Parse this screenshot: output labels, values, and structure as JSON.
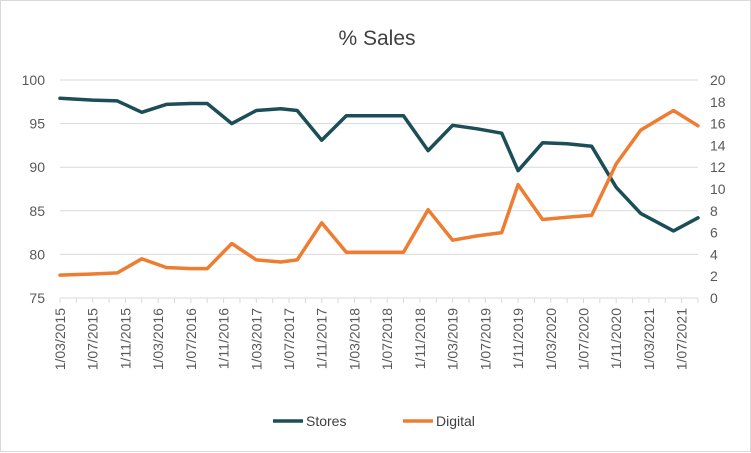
{
  "chart_data": {
    "type": "line",
    "title": "% Sales",
    "xlabel": "",
    "ylabel": "",
    "y2label": "",
    "ylim": [
      75,
      100
    ],
    "y_ticks": [
      75,
      80,
      85,
      90,
      95,
      100
    ],
    "y2lim": [
      0,
      20
    ],
    "y2_ticks": [
      0,
      2,
      4,
      6,
      8,
      10,
      12,
      14,
      16,
      18,
      20
    ],
    "grid": true,
    "legend_position": "bottom",
    "x": [
      "1/03/2015",
      "1/05/2015",
      "1/07/2015",
      "1/09/2015",
      "1/11/2015",
      "1/01/2016",
      "1/03/2016",
      "1/05/2016",
      "1/07/2016",
      "1/09/2016",
      "1/11/2016",
      "1/01/2017",
      "1/03/2017",
      "1/05/2017",
      "1/07/2017",
      "1/09/2017",
      "1/11/2017",
      "1/01/2018",
      "1/03/2018",
      "1/05/2018",
      "1/07/2018",
      "1/09/2018",
      "1/11/2018",
      "1/01/2019",
      "1/03/2019",
      "1/05/2019",
      "1/07/2019",
      "1/09/2019",
      "1/11/2019",
      "1/01/2020",
      "1/03/2020",
      "1/05/2020",
      "1/07/2020",
      "1/09/2020",
      "1/11/2020",
      "1/01/2021",
      "1/03/2021",
      "1/05/2021",
      "1/07/2021",
      "1/09/2021"
    ],
    "x_tick_labels": [
      "1/03/2015",
      "1/07/2015",
      "1/11/2015",
      "1/03/2016",
      "1/07/2016",
      "1/11/2016",
      "1/03/2017",
      "1/07/2017",
      "1/11/2017",
      "1/03/2018",
      "1/07/2018",
      "1/11/2018",
      "1/03/2019",
      "1/07/2019",
      "1/11/2019",
      "1/03/2020",
      "1/07/2020",
      "1/11/2020",
      "1/03/2021",
      "1/07/2021"
    ],
    "series": [
      {
        "name": "Stores",
        "axis": "left",
        "color": "#1b4e57",
        "x": [
          "1/03/2015",
          "1/07/2015",
          "1/10/2015",
          "1/01/2016",
          "1/04/2016",
          "1/07/2016",
          "1/09/2016",
          "1/12/2016",
          "1/03/2017",
          "1/06/2017",
          "1/08/2017",
          "1/11/2017",
          "1/02/2018",
          "1/06/2018",
          "1/09/2018",
          "1/12/2018",
          "1/03/2019",
          "1/06/2019",
          "1/09/2019",
          "1/11/2019",
          "1/02/2020",
          "1/05/2020",
          "1/08/2020",
          "1/11/2020",
          "1/02/2021",
          "1/06/2021",
          "1/09/2021"
        ],
        "values": [
          97.9,
          97.7,
          97.6,
          96.3,
          97.2,
          97.3,
          97.3,
          95.0,
          96.5,
          96.7,
          96.5,
          93.1,
          95.9,
          95.9,
          95.9,
          91.9,
          94.8,
          94.4,
          93.9,
          89.6,
          92.8,
          92.7,
          92.4,
          87.7,
          84.7,
          82.7,
          84.2
        ]
      },
      {
        "name": "Digital",
        "axis": "right",
        "color": "#ed7d31",
        "x": [
          "1/03/2015",
          "1/07/2015",
          "1/10/2015",
          "1/01/2016",
          "1/04/2016",
          "1/07/2016",
          "1/09/2016",
          "1/12/2016",
          "1/03/2017",
          "1/06/2017",
          "1/08/2017",
          "1/11/2017",
          "1/02/2018",
          "1/06/2018",
          "1/09/2018",
          "1/12/2018",
          "1/03/2019",
          "1/06/2019",
          "1/09/2019",
          "1/11/2019",
          "1/02/2020",
          "1/05/2020",
          "1/08/2020",
          "1/11/2020",
          "1/02/2021",
          "1/06/2021",
          "1/09/2021"
        ],
        "values": [
          2.1,
          2.2,
          2.3,
          3.6,
          2.8,
          2.7,
          2.7,
          5.0,
          3.5,
          3.3,
          3.5,
          6.9,
          4.2,
          4.2,
          4.2,
          8.1,
          5.3,
          5.7,
          6.0,
          10.4,
          7.2,
          7.4,
          7.6,
          12.3,
          15.4,
          17.2,
          15.8
        ]
      }
    ]
  }
}
